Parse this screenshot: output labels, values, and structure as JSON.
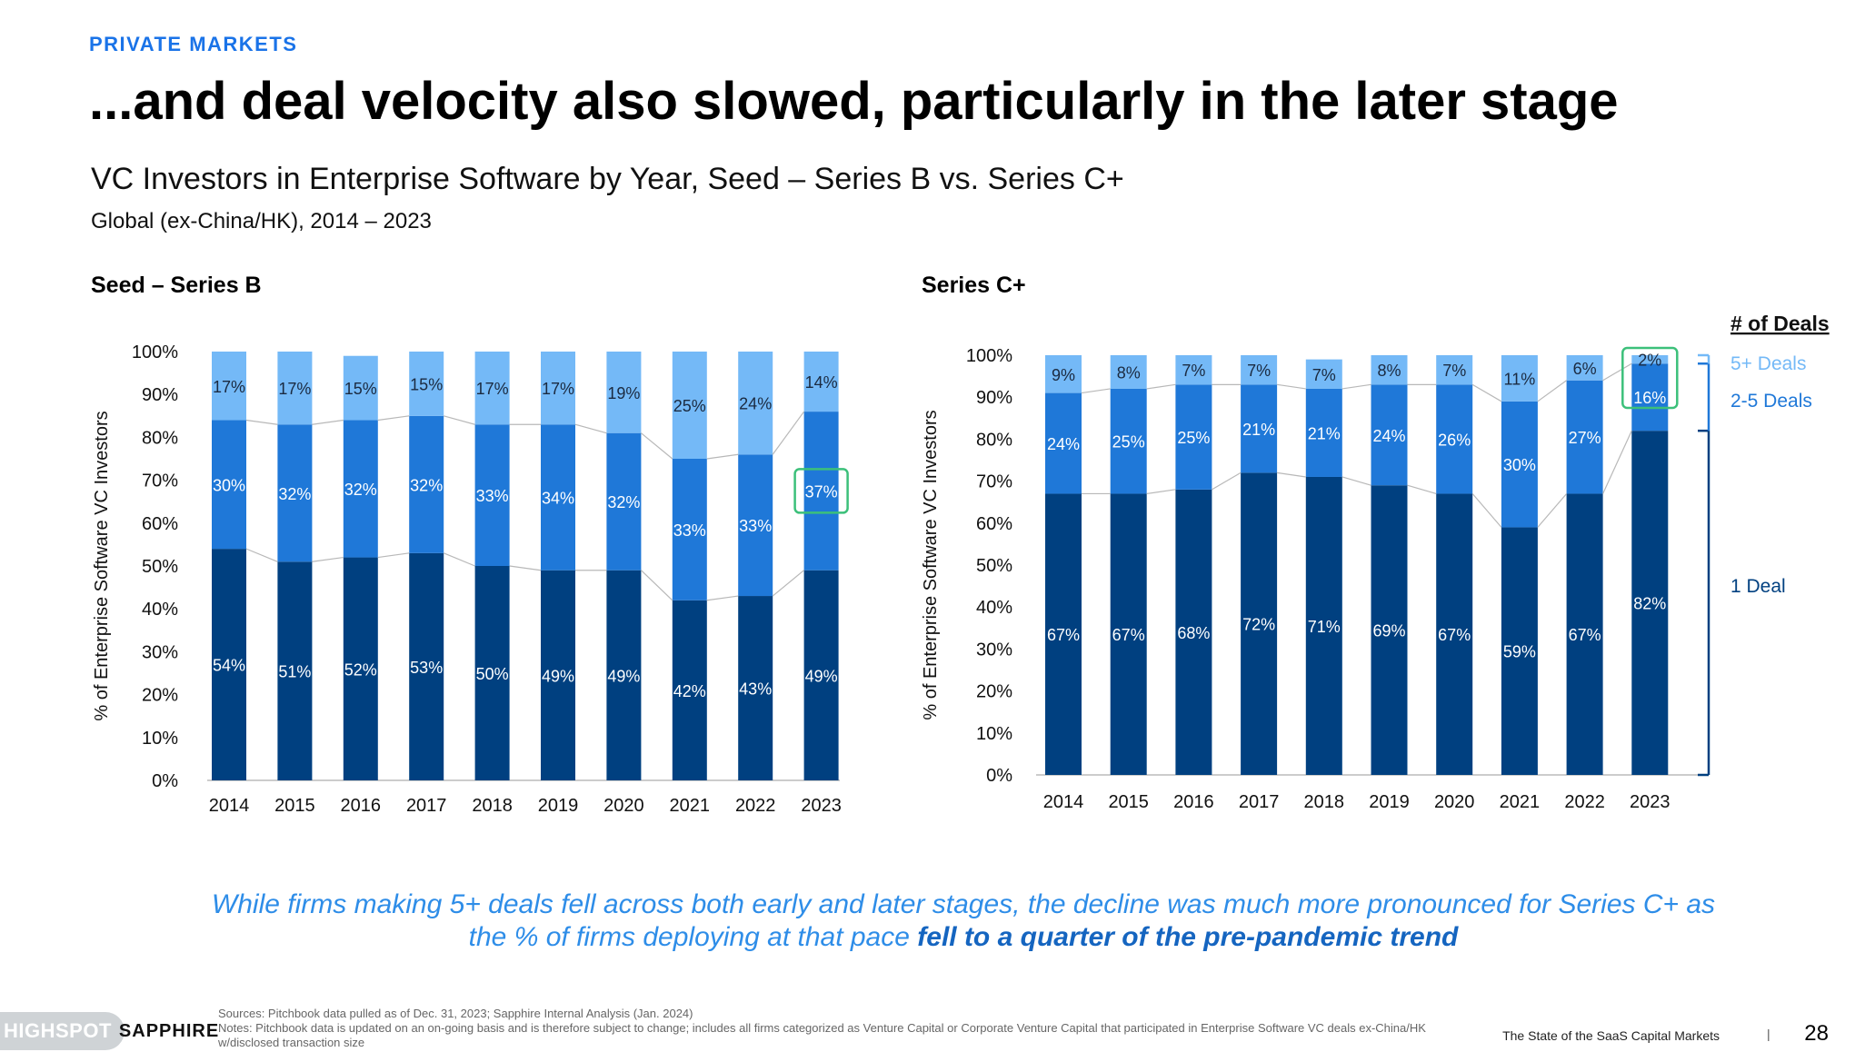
{
  "header": {
    "section": "PRIVATE MARKETS",
    "headline": "...and deal velocity also slowed, particularly in the later stage",
    "chart_title": "VC Investors in Enterprise Software by Year, Seed – Series B vs. Series C+",
    "chart_subtitle": "Global (ex-China/HK), 2014 – 2023"
  },
  "legend": {
    "title": "# of Deals",
    "items": [
      {
        "name": "5+ Deals",
        "color": "#74b9f7"
      },
      {
        "name": "2-5 Deals",
        "color": "#1f78d8"
      },
      {
        "name": "1 Deal",
        "color": "#004080"
      }
    ]
  },
  "chart_data": [
    {
      "type": "bar",
      "stacked": true,
      "title": "Seed – Series B",
      "ylabel": "% of Enterprise Software VC Investors",
      "ylim": [
        0,
        100
      ],
      "yticks": [
        "0%",
        "10%",
        "20%",
        "30%",
        "40%",
        "50%",
        "60%",
        "70%",
        "80%",
        "90%",
        "100%"
      ],
      "categories": [
        "2014",
        "2015",
        "2016",
        "2017",
        "2018",
        "2019",
        "2020",
        "2021",
        "2022",
        "2023"
      ],
      "series": [
        {
          "name": "1 Deal",
          "values": [
            54,
            51,
            52,
            53,
            50,
            49,
            49,
            42,
            43,
            49
          ],
          "labels": [
            "54%",
            "51%",
            "52%",
            "53%",
            "50%",
            "49%",
            "49%",
            "42%",
            "43%",
            "49%"
          ]
        },
        {
          "name": "2-5 Deals",
          "values": [
            30,
            32,
            32,
            32,
            33,
            34,
            32,
            33,
            33,
            37
          ],
          "labels": [
            "30%",
            "32%",
            "32%",
            "32%",
            "33%",
            "34%",
            "32%",
            "33%",
            "33%",
            "37%"
          ]
        },
        {
          "name": "5+ Deals",
          "values": [
            17,
            17,
            15,
            15,
            17,
            17,
            19,
            25,
            24,
            14
          ],
          "labels": [
            "17%",
            "17%",
            "15%",
            "15%",
            "17%",
            "17%",
            "19%",
            "25%",
            "24%",
            "14%"
          ]
        }
      ],
      "highlight": {
        "category": "2023",
        "series": "2-5 Deals"
      }
    },
    {
      "type": "bar",
      "stacked": true,
      "title": "Series C+",
      "ylabel": "% of Enterprise Software VC Investors",
      "ylim": [
        0,
        100
      ],
      "yticks": [
        "0%",
        "10%",
        "20%",
        "30%",
        "40%",
        "50%",
        "60%",
        "70%",
        "80%",
        "90%",
        "100%"
      ],
      "categories": [
        "2014",
        "2015",
        "2016",
        "2017",
        "2018",
        "2019",
        "2020",
        "2021",
        "2022",
        "2023"
      ],
      "series": [
        {
          "name": "1 Deal",
          "values": [
            67,
            67,
            68,
            72,
            71,
            69,
            67,
            59,
            67,
            82
          ],
          "labels": [
            "67%",
            "67%",
            "68%",
            "72%",
            "71%",
            "69%",
            "67%",
            "59%",
            "67%",
            "82%"
          ]
        },
        {
          "name": "2-5 Deals",
          "values": [
            24,
            25,
            25,
            21,
            21,
            24,
            26,
            30,
            27,
            16
          ],
          "labels": [
            "24%",
            "25%",
            "25%",
            "21%",
            "21%",
            "24%",
            "26%",
            "30%",
            "27%",
            "16%"
          ]
        },
        {
          "name": "5+ Deals",
          "values": [
            9,
            8,
            7,
            7,
            7,
            8,
            7,
            11,
            6,
            2
          ],
          "labels": [
            "9%",
            "8%",
            "7%",
            "7%",
            "7%",
            "8%",
            "7%",
            "11%",
            "6%",
            "2%"
          ]
        }
      ],
      "highlight": {
        "category": "2023",
        "series": [
          "5+ Deals",
          "2-5 Deals"
        ]
      }
    }
  ],
  "takeaway": {
    "part1": "While firms making 5+ deals fell across both early and later stages, the decline was much more pronounced for Series C+ as the % of firms deploying at that pace ",
    "emphasis": "fell to a quarter of the pre-pandemic trend"
  },
  "footer": {
    "logo_pill": "HIGHSPOT",
    "logo_brand": "SAPPHIRE",
    "sources": "Sources: Pitchbook data pulled as of Dec. 31, 2023; Sapphire Internal Analysis (Jan. 2024)",
    "notes": "Notes: Pitchbook data is updated on an on-going basis and is therefore subject to change; includes all firms categorized as Venture Capital or Corporate Venture Capital that participated in Enterprise Software VC deals ex-China/HK w/disclosed transaction size",
    "report_name": "The State of the SaaS Capital Markets",
    "separator": "|",
    "page_number": "28"
  }
}
